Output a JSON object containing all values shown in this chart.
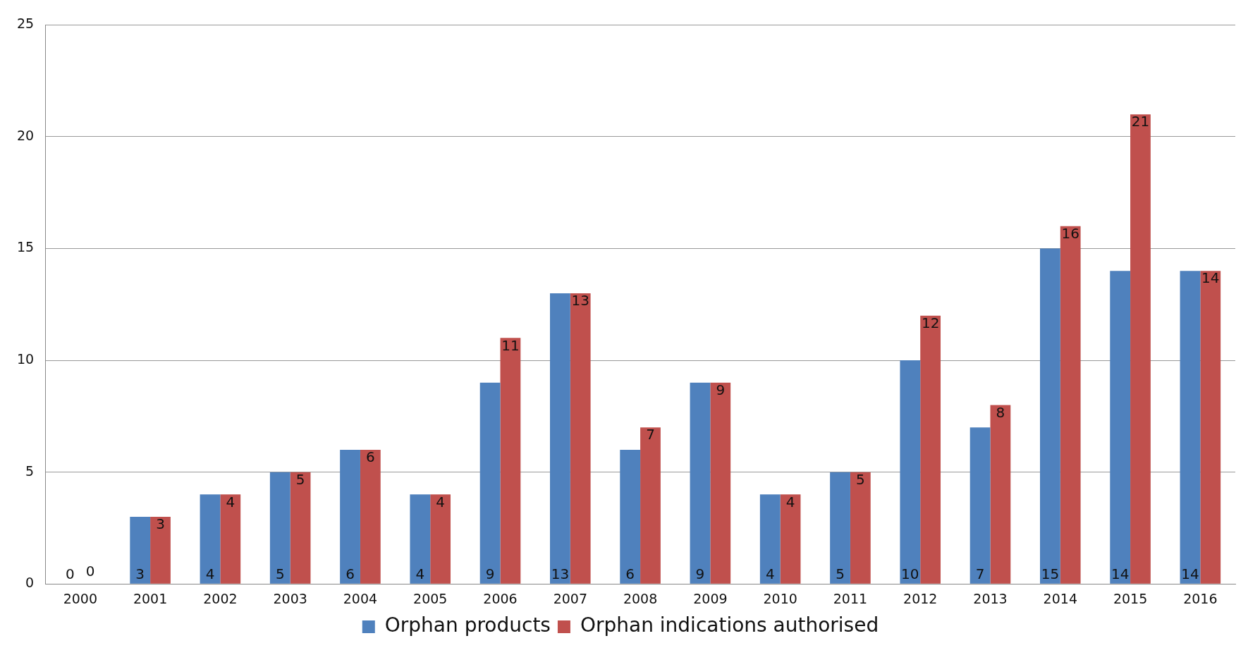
{
  "chart_data": {
    "type": "bar",
    "categories": [
      "2000",
      "2001",
      "2002",
      "2003",
      "2004",
      "2005",
      "2006",
      "2007",
      "2008",
      "2009",
      "2010",
      "2011",
      "2012",
      "2013",
      "2014",
      "2015",
      "2016"
    ],
    "series": [
      {
        "name": "Orphan products",
        "color": "#4f81bd",
        "values": [
          0,
          3,
          4,
          5,
          6,
          4,
          9,
          13,
          6,
          9,
          4,
          5,
          10,
          7,
          15,
          14,
          14
        ]
      },
      {
        "name": "Orphan indications authorised",
        "color": "#c0504d",
        "values": [
          0,
          3,
          4,
          5,
          6,
          4,
          11,
          13,
          7,
          9,
          4,
          5,
          12,
          8,
          16,
          21,
          14
        ]
      }
    ],
    "ylim": [
      0,
      25
    ],
    "yticks": [
      0,
      5,
      10,
      15,
      20,
      25
    ],
    "grid": "y",
    "legend": "bottom",
    "data_labels": true
  }
}
